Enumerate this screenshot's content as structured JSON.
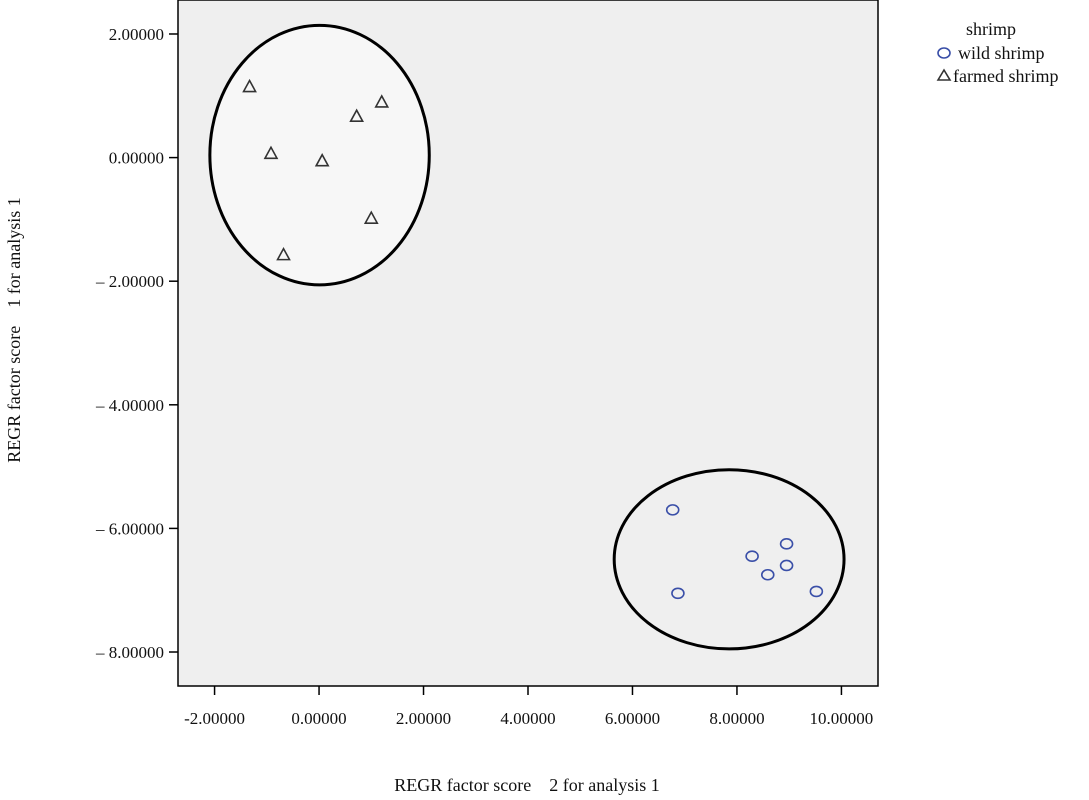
{
  "chart_data": {
    "type": "scatter",
    "xlabel": "REGR factor score    2 for analysis 1",
    "ylabel": "REGR factor score    1 for analysis 1",
    "xlim": [
      -2.7,
      10.7
    ],
    "ylim": [
      -8.55,
      2.55
    ],
    "x_ticks": [
      -2,
      0,
      2,
      4,
      6,
      8,
      10
    ],
    "x_tick_labels": [
      "-2.00000",
      "0.00000",
      "2.00000",
      "4.00000",
      "6.00000",
      "8.00000",
      "10.00000"
    ],
    "y_ticks": [
      2,
      0,
      -2,
      -4,
      -6,
      -8
    ],
    "y_tick_labels": [
      "2.00000",
      "0.00000",
      "– 2.00000",
      "– 4.00000",
      "– 6.00000",
      "– 8.00000"
    ],
    "grid": false,
    "legend": {
      "title": "shrimp",
      "position": "top-right"
    },
    "series": [
      {
        "name": "wild shrimp",
        "marker": "circle",
        "color": "#3a4fa8",
        "x": [
          6.77,
          6.87,
          8.29,
          8.59,
          8.95,
          8.95,
          9.52
        ],
        "y": [
          -5.7,
          -7.05,
          -6.45,
          -6.75,
          -6.25,
          -6.6,
          -7.02
        ]
      },
      {
        "name": "farmed shrimp",
        "marker": "triangle",
        "color": "#333333",
        "x": [
          -1.33,
          -0.92,
          -0.68,
          0.06,
          0.72,
          1.0,
          1.2
        ],
        "y": [
          1.15,
          0.07,
          -1.57,
          -0.05,
          0.67,
          -0.98,
          0.9
        ]
      }
    ],
    "ellipses": [
      {
        "group": "farmed shrimp",
        "cx": 0.01,
        "cy": 0.04,
        "rx": 2.1,
        "ry": 2.1
      },
      {
        "group": "wild shrimp",
        "cx": 7.85,
        "cy": -6.5,
        "rx": 2.2,
        "ry": 1.45
      }
    ],
    "colors": {
      "plot_background": "#efefef",
      "axis": "#000000"
    }
  }
}
